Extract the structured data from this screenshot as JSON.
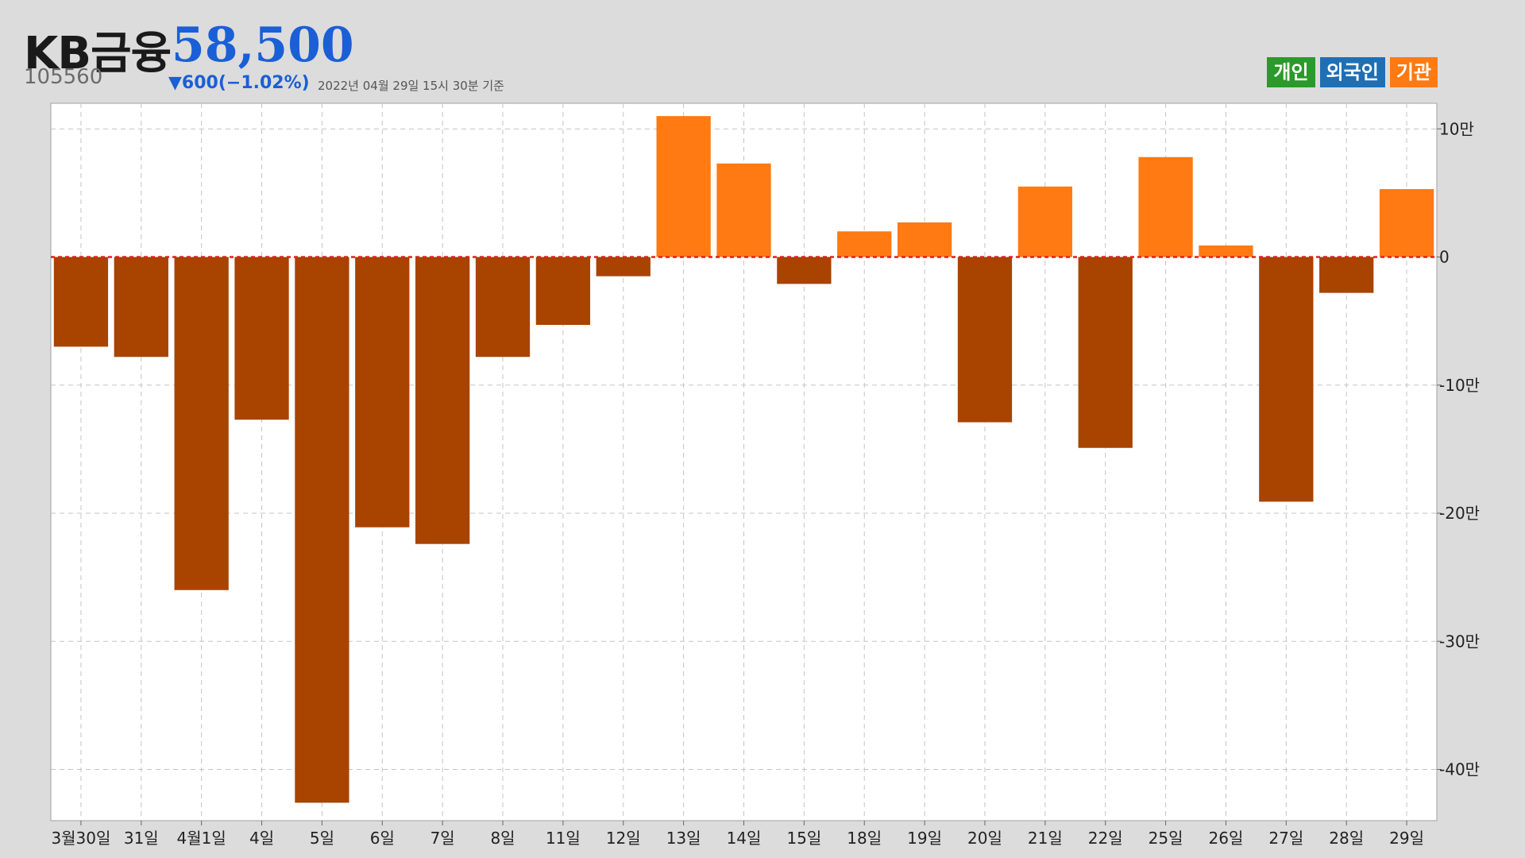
{
  "header": {
    "name": "KB금융",
    "price": "58,500",
    "code": "105560",
    "change": "▼600(−1.02%)",
    "date": "2022년 04월 29일 15시 30분 기준"
  },
  "legend": [
    {
      "label": "개인",
      "color": "#2a9a2a"
    },
    {
      "label": "외국인",
      "color": "#1f6fb5"
    },
    {
      "label": "기관",
      "color": "#ff7a12"
    }
  ],
  "chart_data": {
    "type": "bar",
    "categories": [
      "3월30일",
      "31일",
      "4월1일",
      "4일",
      "5일",
      "6일",
      "7일",
      "8일",
      "11일",
      "12일",
      "13일",
      "14일",
      "15일",
      "18일",
      "19일",
      "20일",
      "21일",
      "22일",
      "25일",
      "26일",
      "27일",
      "28일",
      "29일"
    ],
    "series": [
      {
        "values": [
          -70000,
          -78000,
          -260000,
          -127000,
          -426000,
          -211000,
          -224000,
          -78000,
          -53000,
          -15000,
          110000,
          73000,
          -21000,
          20000,
          27000,
          -129000,
          55000,
          -149000,
          78000,
          9000,
          -191000,
          -28000,
          53000
        ]
      }
    ],
    "ylim": [
      -440000,
      120000
    ],
    "yticks": [
      {
        "value": 100000,
        "label": "10만"
      },
      {
        "value": 0,
        "label": "0"
      },
      {
        "value": -100000,
        "label": "-10만"
      },
      {
        "value": -200000,
        "label": "-20만"
      },
      {
        "value": -300000,
        "label": "-30만"
      },
      {
        "value": -400000,
        "label": "-40만"
      }
    ],
    "grid": true,
    "colors": {
      "positive": "#ff7a12",
      "negative": "#a84300",
      "zero_line": "#e02020"
    }
  }
}
